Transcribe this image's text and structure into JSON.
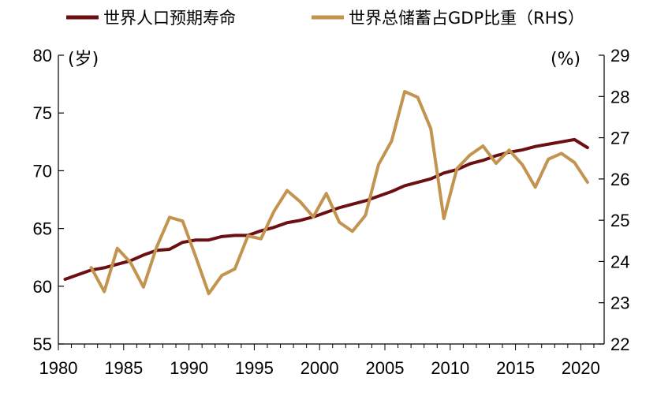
{
  "chart_data": {
    "type": "line",
    "title": "",
    "xlabel": "",
    "ylabel": "(岁)",
    "ylabel_right": "(%)",
    "xlim": [
      1980,
      2021
    ],
    "ylim": [
      55,
      80
    ],
    "ylim_right": [
      22,
      29
    ],
    "x_ticks": [
      "1980",
      "1985",
      "1990",
      "1995",
      "2000",
      "2005",
      "2010",
      "2015",
      "2020"
    ],
    "y_ticks": [
      "55",
      "60",
      "65",
      "70",
      "75",
      "80"
    ],
    "y_ticks_right": [
      "22",
      "23",
      "24",
      "25",
      "26",
      "27",
      "28",
      "29"
    ],
    "legend_position": "top",
    "series": [
      {
        "name": "世界人口预期寿命",
        "axis": "left",
        "color": "#6b0f12",
        "x": [
          1980,
          1981,
          1982,
          1983,
          1984,
          1985,
          1986,
          1987,
          1988,
          1989,
          1990,
          1991,
          1992,
          1993,
          1994,
          1995,
          1996,
          1997,
          1998,
          1999,
          2000,
          2001,
          2002,
          2003,
          2004,
          2005,
          2006,
          2007,
          2008,
          2009,
          2010,
          2011,
          2012,
          2013,
          2014,
          2015,
          2016,
          2017,
          2018,
          2019,
          2020
        ],
        "values": [
          60.6,
          61.0,
          61.4,
          61.6,
          61.9,
          62.2,
          62.7,
          63.1,
          63.2,
          63.8,
          64.0,
          64.0,
          64.3,
          64.4,
          64.4,
          64.8,
          65.1,
          65.5,
          65.7,
          66.0,
          66.4,
          66.8,
          67.1,
          67.4,
          67.8,
          68.2,
          68.7,
          69.0,
          69.3,
          69.8,
          70.1,
          70.6,
          70.9,
          71.3,
          71.6,
          71.8,
          72.1,
          72.3,
          72.5,
          72.7,
          72.0
        ]
      },
      {
        "name": "世界总储蓄占GDP比重（RHS）",
        "axis": "right",
        "color": "#c29450",
        "x": [
          1982,
          1983,
          1984,
          1985,
          1986,
          1987,
          1988,
          1989,
          1990,
          1991,
          1992,
          1993,
          1994,
          1995,
          1996,
          1997,
          1998,
          1999,
          2000,
          2001,
          2002,
          2003,
          2004,
          2005,
          2006,
          2007,
          2008,
          2009,
          2010,
          2011,
          2012,
          2013,
          2014,
          2015,
          2016,
          2017,
          2018,
          2019,
          2020
        ],
        "values": [
          23.85,
          23.27,
          24.32,
          23.98,
          23.38,
          24.34,
          25.07,
          24.98,
          24.12,
          23.22,
          23.66,
          23.82,
          24.62,
          24.55,
          25.22,
          25.72,
          25.45,
          25.08,
          25.65,
          24.95,
          24.73,
          25.12,
          26.35,
          26.92,
          28.12,
          27.98,
          27.22,
          25.04,
          26.25,
          26.58,
          26.8,
          26.38,
          26.7,
          26.35,
          25.8,
          26.48,
          26.62,
          26.4,
          25.92
        ]
      }
    ]
  }
}
